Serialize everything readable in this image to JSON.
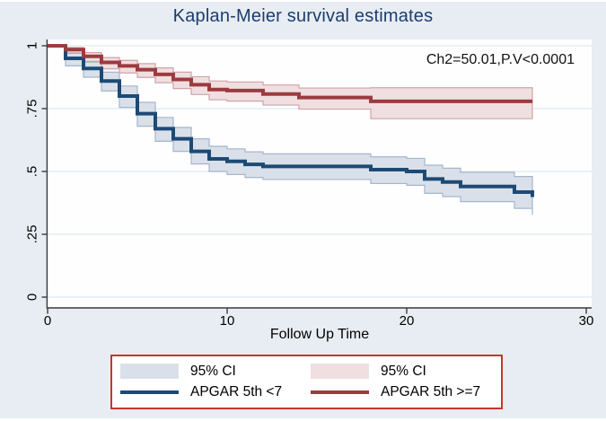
{
  "chart_data": {
    "type": "line",
    "subtype": "kaplan-meier-step",
    "title": "Kaplan-Meier survival estimates",
    "xlabel": "Follow Up Time",
    "ylabel": "",
    "annotation": "Ch2=50.01,P.V<0.0001",
    "xlim": [
      0,
      30
    ],
    "ylim": [
      0,
      1
    ],
    "x_ticks": [
      0,
      10,
      20,
      30
    ],
    "x_tick_labels": [
      "0",
      "10",
      "20",
      "30"
    ],
    "y_ticks": [
      0,
      0.25,
      0.5,
      0.75,
      1
    ],
    "y_tick_labels": [
      "0",
      ".25",
      ".5",
      ".75",
      "1"
    ],
    "grid": true,
    "legend_position": "bottom",
    "colors": {
      "background": "#e7edf2",
      "plot_background": "#fefefe",
      "grid": "#dcebf3",
      "axis": "#3a3a3a",
      "title": "#1e3c6e",
      "text": "#000000"
    },
    "series": [
      {
        "name": "APGAR 5th <7",
        "ci_name": "95% CI",
        "color": "#1c4a75",
        "ci_fill": "#dae0e9",
        "ci_edge": "#a4b6ce",
        "points": [
          {
            "t": 0,
            "s": 1.0,
            "lo": 1.0,
            "hi": 1.0
          },
          {
            "t": 1,
            "s": 0.95,
            "lo": 0.92,
            "hi": 0.97
          },
          {
            "t": 2,
            "s": 0.91,
            "lo": 0.875,
            "hi": 0.935
          },
          {
            "t": 3,
            "s": 0.86,
            "lo": 0.82,
            "hi": 0.895
          },
          {
            "t": 4,
            "s": 0.8,
            "lo": 0.755,
            "hi": 0.84
          },
          {
            "t": 5,
            "s": 0.73,
            "lo": 0.68,
            "hi": 0.775
          },
          {
            "t": 6,
            "s": 0.67,
            "lo": 0.62,
            "hi": 0.715
          },
          {
            "t": 7,
            "s": 0.63,
            "lo": 0.58,
            "hi": 0.675
          },
          {
            "t": 8,
            "s": 0.58,
            "lo": 0.53,
            "hi": 0.63
          },
          {
            "t": 9,
            "s": 0.55,
            "lo": 0.5,
            "hi": 0.6
          },
          {
            "t": 10,
            "s": 0.54,
            "lo": 0.488,
            "hi": 0.59
          },
          {
            "t": 11,
            "s": 0.528,
            "lo": 0.476,
            "hi": 0.578
          },
          {
            "t": 12,
            "s": 0.52,
            "lo": 0.468,
            "hi": 0.57
          },
          {
            "t": 18,
            "s": 0.507,
            "lo": 0.452,
            "hi": 0.558
          },
          {
            "t": 20,
            "s": 0.5,
            "lo": 0.445,
            "hi": 0.552
          },
          {
            "t": 21,
            "s": 0.47,
            "lo": 0.413,
            "hi": 0.525
          },
          {
            "t": 22,
            "s": 0.458,
            "lo": 0.4,
            "hi": 0.513
          },
          {
            "t": 23,
            "s": 0.44,
            "lo": 0.38,
            "hi": 0.497
          },
          {
            "t": 26,
            "s": 0.418,
            "lo": 0.353,
            "hi": 0.48
          },
          {
            "t": 27,
            "s": 0.398,
            "lo": 0.328,
            "hi": 0.468
          }
        ]
      },
      {
        "name": "APGAR 5th  >=7",
        "ci_name": "95% CI",
        "color": "#9d3b40",
        "ci_fill": "#f0dfe0",
        "ci_edge": "#cfa3a9",
        "points": [
          {
            "t": 0,
            "s": 1.0,
            "lo": 1.0,
            "hi": 1.0
          },
          {
            "t": 1,
            "s": 0.985,
            "lo": 0.972,
            "hi": 0.993
          },
          {
            "t": 2,
            "s": 0.958,
            "lo": 0.938,
            "hi": 0.973
          },
          {
            "t": 3,
            "s": 0.934,
            "lo": 0.908,
            "hi": 0.953
          },
          {
            "t": 4,
            "s": 0.92,
            "lo": 0.892,
            "hi": 0.942
          },
          {
            "t": 5,
            "s": 0.905,
            "lo": 0.874,
            "hi": 0.929
          },
          {
            "t": 6,
            "s": 0.886,
            "lo": 0.853,
            "hi": 0.912
          },
          {
            "t": 7,
            "s": 0.866,
            "lo": 0.83,
            "hi": 0.895
          },
          {
            "t": 8,
            "s": 0.845,
            "lo": 0.806,
            "hi": 0.877
          },
          {
            "t": 9,
            "s": 0.826,
            "lo": 0.785,
            "hi": 0.86
          },
          {
            "t": 10,
            "s": 0.822,
            "lo": 0.78,
            "hi": 0.856
          },
          {
            "t": 12,
            "s": 0.808,
            "lo": 0.764,
            "hi": 0.844
          },
          {
            "t": 14,
            "s": 0.794,
            "lo": 0.748,
            "hi": 0.832
          },
          {
            "t": 18,
            "s": 0.779,
            "lo": 0.71,
            "hi": 0.833
          },
          {
            "t": 27,
            "s": 0.779,
            "lo": 0.71,
            "hi": 0.833
          }
        ]
      }
    ]
  },
  "legend": {
    "border_color": "#c9342e",
    "items": [
      {
        "label": "95% CI",
        "swatch": "band-blue"
      },
      {
        "label": "95% CI",
        "swatch": "band-pink"
      },
      {
        "label": "APGAR 5th <7",
        "swatch": "line-navy"
      },
      {
        "label": "APGAR 5th  >=7",
        "swatch": "line-maroon"
      }
    ]
  }
}
